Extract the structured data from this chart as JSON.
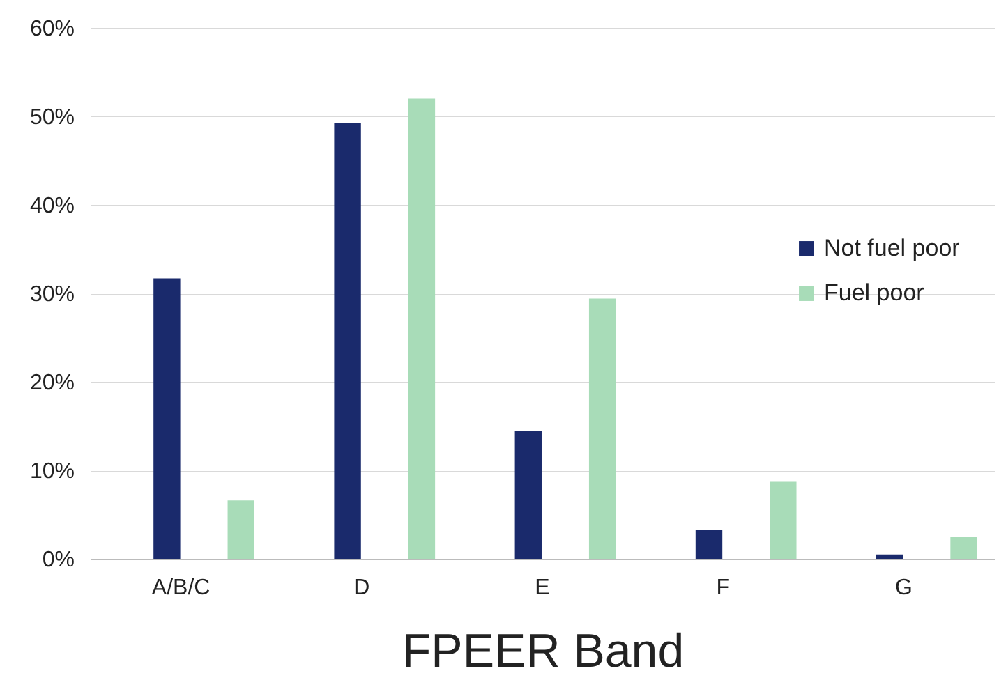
{
  "chart_data": {
    "type": "bar",
    "xlabel": "FPEER Band",
    "categories": [
      "A/B/C",
      "D",
      "E",
      "F",
      "G"
    ],
    "series": [
      {
        "name": "Not fuel poor",
        "color": "#1a2a6c",
        "values": [
          31.7,
          49.3,
          14.4,
          3.3,
          0.5
        ]
      },
      {
        "name": "Fuel poor",
        "color": "#a8dcb8",
        "values": [
          6.6,
          52,
          29.4,
          8.7,
          2.5
        ]
      }
    ],
    "ylim": [
      0,
      60
    ],
    "yticks": [
      {
        "value": 0,
        "label": "0%"
      },
      {
        "value": 10,
        "label": "10%"
      },
      {
        "value": 20,
        "label": "20%"
      },
      {
        "value": 30,
        "label": "30%"
      },
      {
        "value": 40,
        "label": "40%"
      },
      {
        "value": 50,
        "label": "50%"
      },
      {
        "value": 60,
        "label": "60%"
      }
    ],
    "grid": "y",
    "legend": "right"
  }
}
